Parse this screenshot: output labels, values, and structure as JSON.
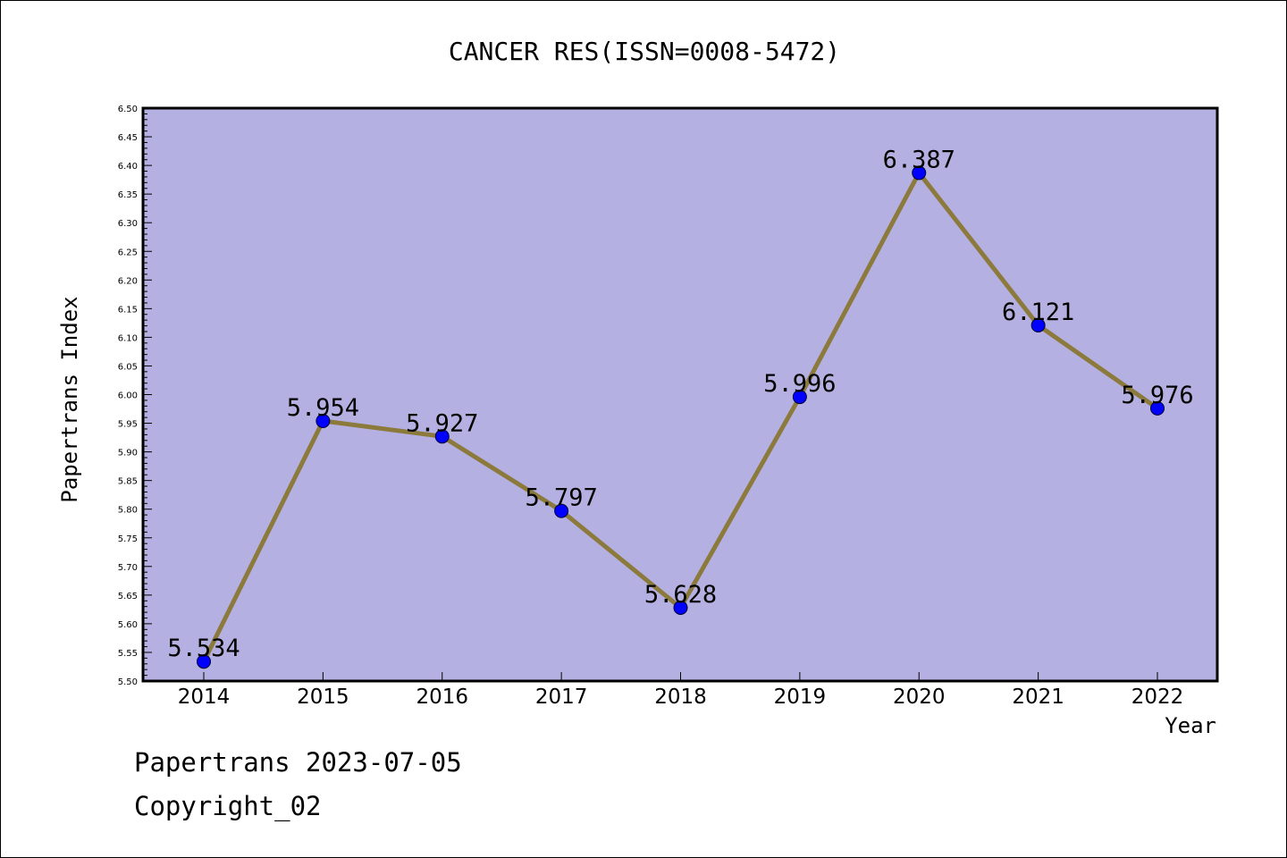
{
  "chart_data": {
    "type": "line",
    "title": "CANCER RES(ISSN=0008-5472)",
    "xlabel": "Year",
    "ylabel": "Papertrans Index",
    "categories": [
      "2014",
      "2015",
      "2016",
      "2017",
      "2018",
      "2019",
      "2020",
      "2021",
      "2022"
    ],
    "values": [
      5.534,
      5.954,
      5.927,
      5.797,
      5.628,
      5.996,
      6.387,
      6.121,
      5.976
    ],
    "value_labels": [
      "5.534",
      "5.954",
      "5.927",
      "5.797",
      "5.628",
      "5.996",
      "6.387",
      "6.121",
      "5.976"
    ],
    "ylim": [
      5.5,
      6.5
    ],
    "yticks": [
      "5.50",
      "5.55",
      "5.60",
      "5.65",
      "5.70",
      "5.75",
      "5.80",
      "5.85",
      "5.90",
      "5.95",
      "6.00",
      "6.05",
      "6.10",
      "6.15",
      "6.20",
      "6.25",
      "6.30",
      "6.35",
      "6.40",
      "6.45",
      "6.50"
    ],
    "grid": false,
    "legend": "none",
    "colors": {
      "plot_background": "#b5b0e2",
      "line": "#8b7a3c",
      "marker": "#0000ff"
    }
  },
  "footer": {
    "line1": "Papertrans 2023-07-05",
    "line2": "Copyright_02"
  }
}
